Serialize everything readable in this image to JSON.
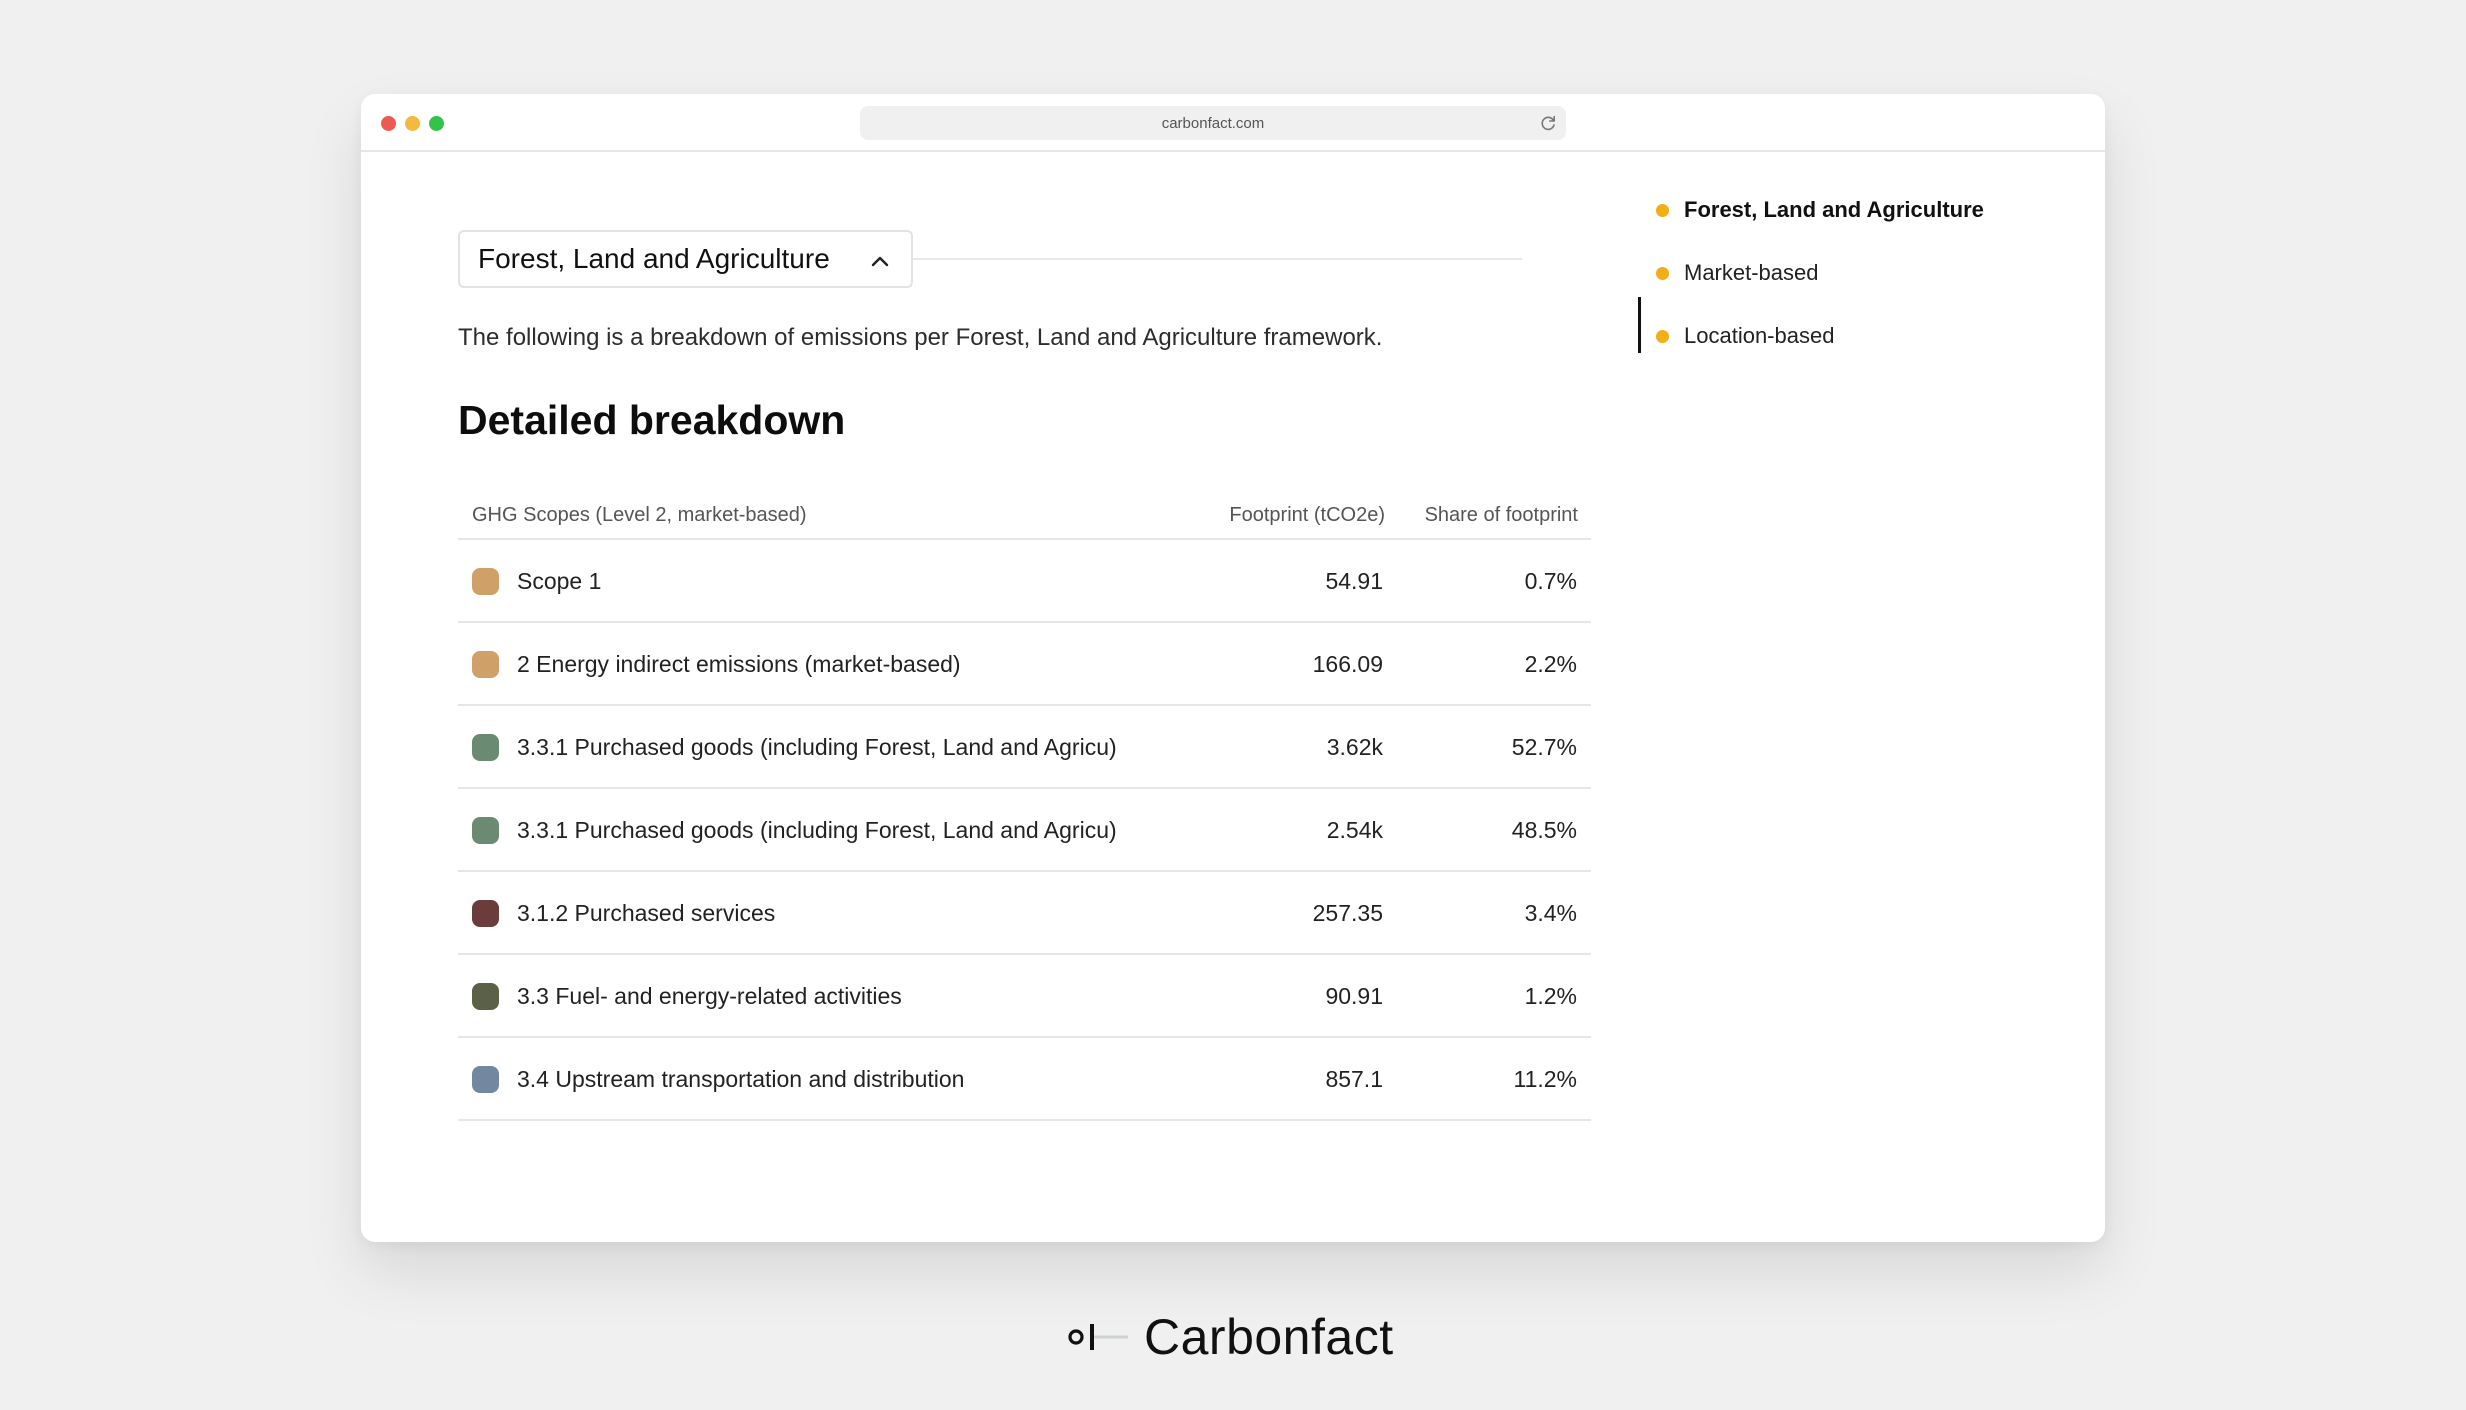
{
  "browser": {
    "url": "carbonfact.com"
  },
  "section": {
    "dropdown_label": "Forest, Land and Agriculture",
    "intro": "The following is a breakdown of emissions per Forest, Land and Agriculture framework.",
    "heading": "Detailed breakdown"
  },
  "table": {
    "headers": {
      "scope": "GHG Scopes (Level 2, market-based)",
      "footprint": "Footprint (tCO2e)",
      "share": "Share of footprint"
    },
    "rows": [
      {
        "label": "Scope 1",
        "footprint": "54.91",
        "share": "0.7%",
        "color": "#cfa068"
      },
      {
        "label": "2 Energy indirect emissions (market-based)",
        "footprint": "166.09",
        "share": "2.2%",
        "color": "#cfa068"
      },
      {
        "label": "3.3.1 Purchased goods (including Forest, Land and Agricu)",
        "footprint": "3.62k",
        "share": "52.7%",
        "color": "#6b8a72"
      },
      {
        "label": "3.3.1 Purchased goods (including Forest, Land and Agricu)",
        "footprint": "2.54k",
        "share": "48.5%",
        "color": "#6b8a72"
      },
      {
        "label": "3.1.2 Purchased services",
        "footprint": "257.35",
        "share": "3.4%",
        "color": "#6a3c3c"
      },
      {
        "label": "3.3 Fuel- and energy-related activities",
        "footprint": "90.91",
        "share": "1.2%",
        "color": "#5b6146"
      },
      {
        "label": "3.4 Upstream transportation and distribution",
        "footprint": "857.1",
        "share": "11.2%",
        "color": "#7487a0"
      }
    ]
  },
  "toc": {
    "items": [
      {
        "label": "Forest, Land and Agriculture",
        "active": true
      },
      {
        "label": "Market-based",
        "active": false
      },
      {
        "label": "Location-based",
        "active": false
      }
    ],
    "bullet_color": "#f2ad17"
  },
  "brand": {
    "name": "Carbonfact"
  }
}
